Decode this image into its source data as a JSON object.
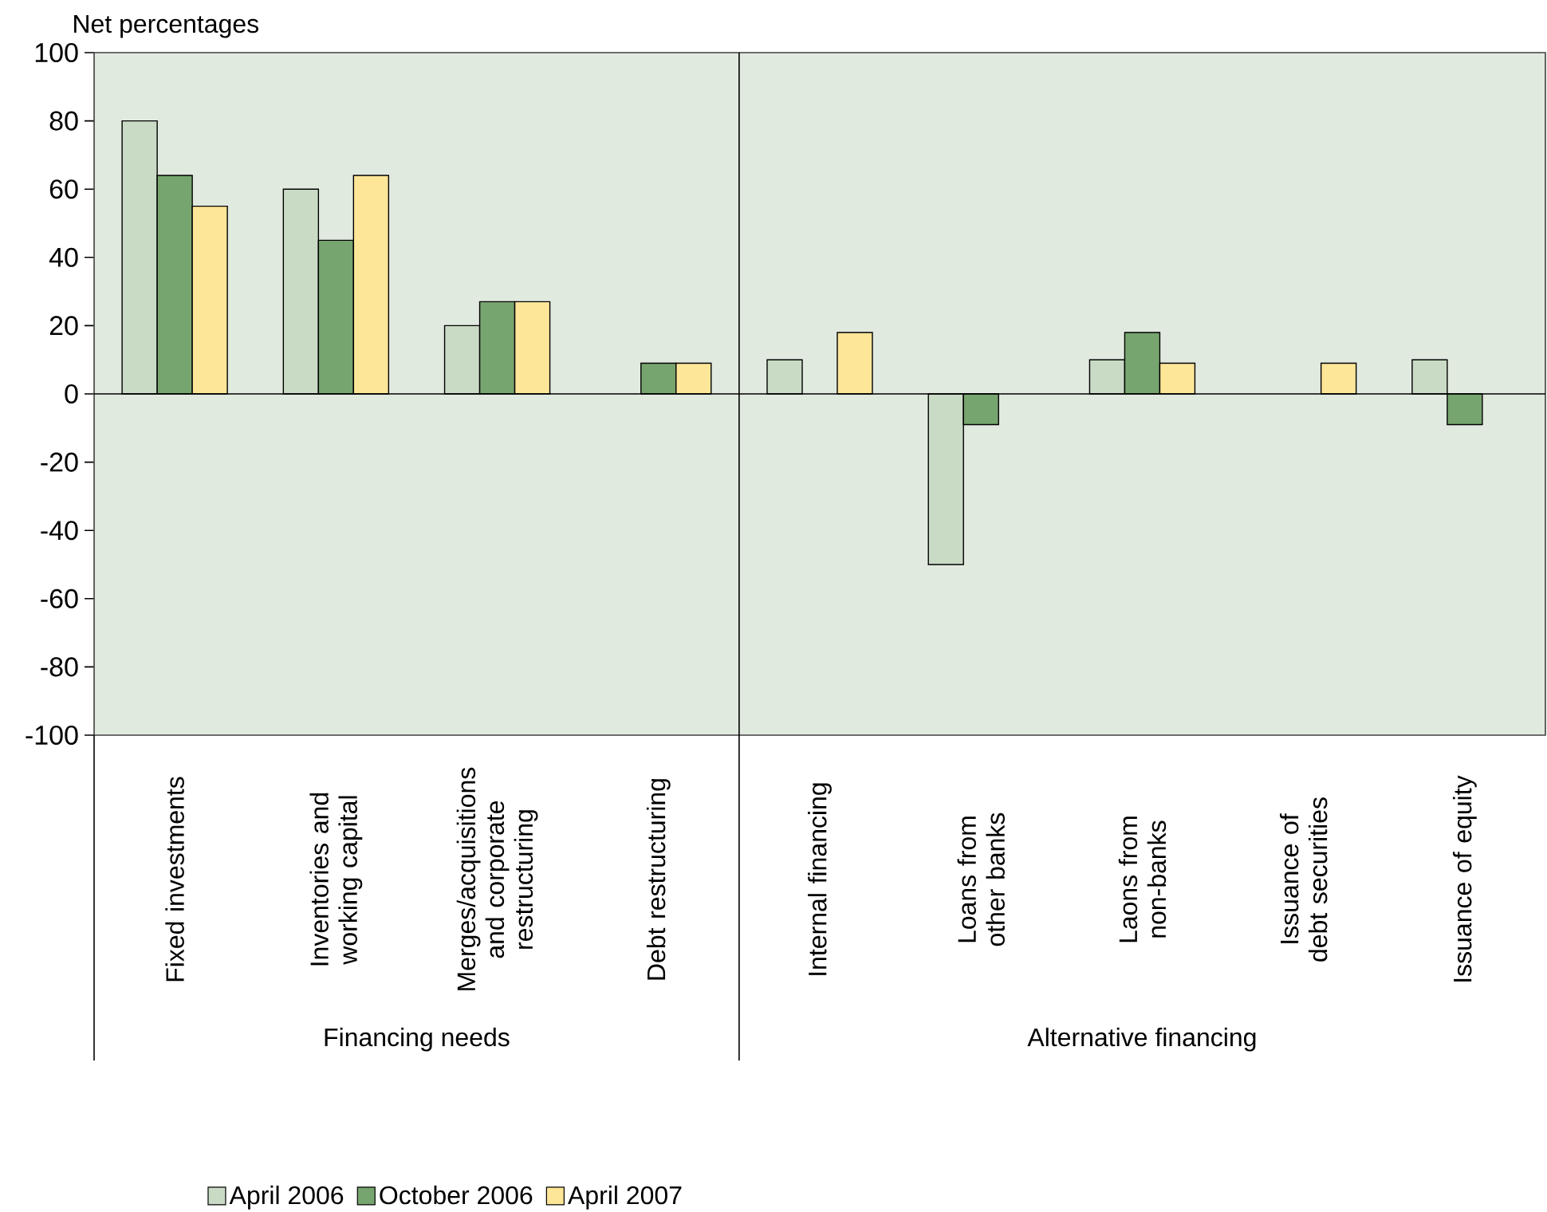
{
  "chart_data": {
    "type": "bar",
    "ylabel": "Net percentages",
    "categories": [
      "Fixed investments",
      "Inventories and working capital",
      "Merges/acquisitions and corporate restructuring",
      "Debt restructuring",
      "Internal financing",
      "Loans from other banks",
      "Laons from non-banks",
      "Issuance of debt securities",
      "Issuance of equity"
    ],
    "series": [
      {
        "name": "April 2006",
        "color": "#c9dbc5",
        "values": [
          80,
          60,
          20,
          null,
          10,
          -50,
          10,
          null,
          10
        ]
      },
      {
        "name": "October 2006",
        "color": "#77a56f",
        "values": [
          64,
          45,
          27,
          9,
          null,
          -9,
          18,
          null,
          -9
        ]
      },
      {
        "name": "April 2007",
        "color": "#fee699",
        "values": [
          55,
          64,
          27,
          9,
          18,
          null,
          9,
          9,
          null
        ]
      }
    ],
    "ylim": [
      -100,
      100
    ],
    "yticks": [
      -100,
      -80,
      -60,
      -40,
      -20,
      0,
      20,
      40,
      60,
      80,
      100
    ],
    "legend": "bottom",
    "annotations": [
      "Financing needs",
      "Alternative financing"
    ]
  }
}
